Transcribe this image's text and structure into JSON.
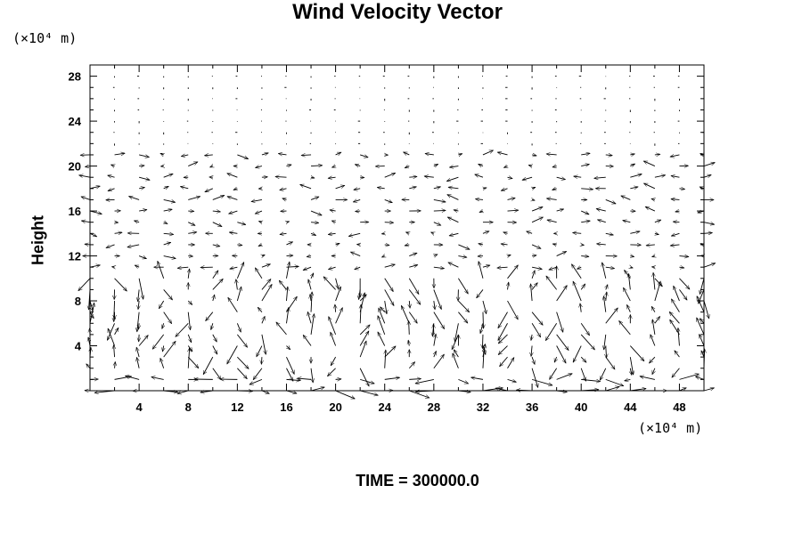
{
  "chart_data": {
    "type": "vector-field",
    "title": "Wind Velocity Vector",
    "x_unit": "(×10⁴ m)",
    "y_unit": "(×10⁴ m)",
    "ylabel": "Height",
    "time_label": "TIME =",
    "time_value": "300000.0",
    "xlim": [
      0,
      50
    ],
    "ylim": [
      0,
      29
    ],
    "x_ticks": [
      4,
      8,
      12,
      16,
      20,
      24,
      28,
      32,
      36,
      40,
      44,
      48
    ],
    "y_ticks": [
      4,
      8,
      12,
      16,
      20,
      24,
      28
    ],
    "grid": false,
    "vectors": {
      "x_start": 0.0,
      "x_step": 2.0,
      "x_count": 26,
      "y_start": 0.0,
      "y_step": 1.0,
      "y_count": 29,
      "description": "Low-level wind field; strong vectors below height 10, moderate near heights 13–21, calm above 22"
    }
  }
}
